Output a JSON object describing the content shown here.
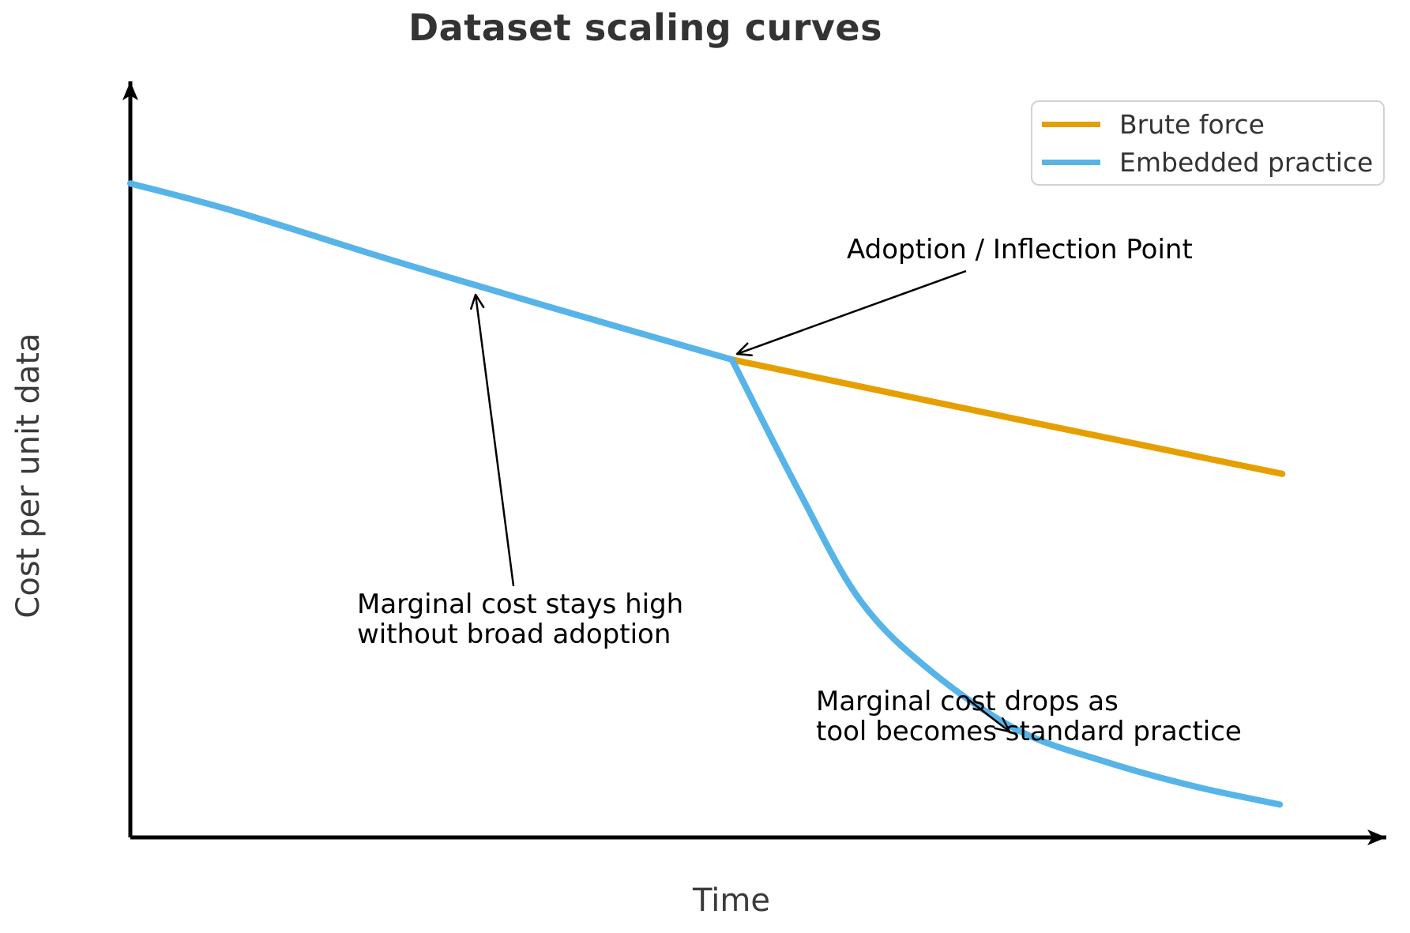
{
  "figure": {
    "background": "#ffffff",
    "title_color": "#333333",
    "axis_label_color": "#3a3a3a",
    "axis_color": "#000000",
    "annotation_color": "#000000"
  },
  "chart_data": {
    "type": "line",
    "title": "Dataset scaling curves",
    "xlabel": "Time",
    "ylabel": "Cost per unit data",
    "grid": false,
    "x_axis": {
      "range": [
        0,
        10
      ],
      "ticks": [],
      "arrow": true
    },
    "y_axis": {
      "range": [
        0,
        10
      ],
      "ticks": [],
      "arrow": true
    },
    "legend": {
      "position": "upper right",
      "entries": [
        {
          "label": "Brute force",
          "color": "#E69F00"
        },
        {
          "label": "Embedded practice",
          "color": "#56B4E9"
        }
      ]
    },
    "series": [
      {
        "name": "Brute force",
        "color": "#E69F00",
        "style": "solid",
        "linewidth": 8,
        "segments": [
          [
            [
              4.82,
              6.4
            ],
            [
              7.05,
              5.62
            ],
            [
              9.23,
              4.87
            ]
          ]
        ]
      },
      {
        "name": "Embedded practice",
        "color": "#56B4E9",
        "style": "solid",
        "linewidth": 8,
        "segments": [
          [
            [
              0.0,
              8.76
            ],
            [
              0.85,
              8.38
            ],
            [
              2.12,
              7.72
            ],
            [
              3.39,
              7.09
            ],
            [
              4.82,
              6.4
            ]
          ],
          [
            [
              4.82,
              6.4
            ],
            [
              5.35,
              4.66
            ],
            [
              5.85,
              3.17
            ],
            [
              6.42,
              2.22
            ],
            [
              7.12,
              1.43
            ],
            [
              7.82,
              1.01
            ],
            [
              8.51,
              0.69
            ],
            [
              9.21,
              0.44
            ]
          ]
        ]
      }
    ],
    "annotations": [
      {
        "id": "inflection",
        "lines": [
          "Adoption / Inflection Point"
        ],
        "xy": [
          4.861,
          6.476
        ],
        "arrow_from": [
          6.696,
          7.587
        ]
      },
      {
        "id": "stays-high",
        "lines": [
          "Marginal cost stays high",
          "without broad adoption"
        ],
        "xy": [
          2.766,
          7.27
        ],
        "arrow_from": [
          3.07,
          3.365
        ]
      },
      {
        "id": "drops",
        "lines": [
          "Marginal cost drops as",
          "tool becomes standard practice"
        ],
        "xy": [
          7.044,
          1.418
        ],
        "arrow_from": [
          6.709,
          1.852
        ]
      }
    ]
  }
}
